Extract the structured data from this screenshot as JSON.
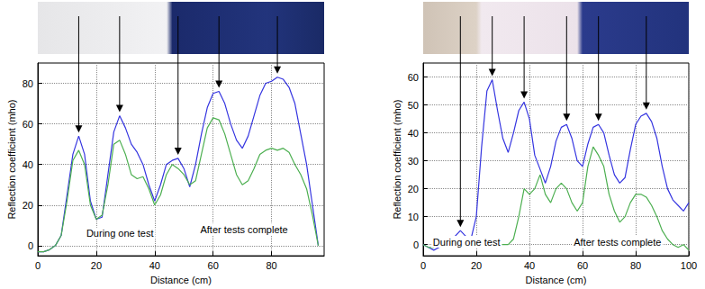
{
  "chart_data": [
    {
      "type": "line",
      "xlabel": "Distance (cm)",
      "ylabel": "Reflection coefficient (mho)",
      "x": [
        0,
        2,
        4,
        6,
        8,
        10,
        12,
        14,
        16,
        18,
        20,
        22,
        24,
        26,
        28,
        30,
        32,
        34,
        36,
        38,
        40,
        42,
        44,
        46,
        48,
        50,
        52,
        54,
        56,
        58,
        60,
        62,
        64,
        66,
        68,
        70,
        72,
        74,
        76,
        78,
        80,
        82,
        84,
        86,
        88,
        90,
        92,
        94,
        96
      ],
      "series": [
        {
          "color": "#3535e0",
          "values": [
            -3,
            -3,
            -2,
            0,
            5,
            25,
            45,
            54,
            45,
            22,
            13,
            14,
            35,
            56,
            64,
            58,
            50,
            46,
            40,
            30,
            22,
            30,
            40,
            42,
            43,
            38,
            29,
            40,
            55,
            68,
            75,
            76,
            70,
            60,
            52,
            48,
            54,
            64,
            74,
            80,
            81,
            83,
            82,
            78,
            70,
            55,
            40,
            20,
            0
          ]
        },
        {
          "color": "#4caf50",
          "values": [
            -3,
            -3,
            -2,
            0,
            5,
            22,
            42,
            47,
            40,
            20,
            13,
            15,
            30,
            50,
            52,
            45,
            35,
            33,
            34,
            28,
            20,
            25,
            35,
            40,
            38,
            35,
            30,
            32,
            45,
            58,
            63,
            62,
            55,
            45,
            35,
            30,
            32,
            38,
            45,
            47,
            48,
            47,
            48,
            46,
            40,
            35,
            28,
            15,
            0
          ]
        }
      ],
      "xlim": [
        0,
        98
      ],
      "xticks": [
        0,
        20,
        40,
        60,
        80
      ],
      "ylim": [
        -5,
        90
      ],
      "yticks": [
        0,
        20,
        40,
        60,
        80
      ],
      "grid": true,
      "annotations": [
        "During one test",
        "After tests complete"
      ]
    },
    {
      "type": "line",
      "xlabel": "Distance (cm)",
      "ylabel": "Reflection coefficient (mho)",
      "x": [
        0,
        2,
        4,
        6,
        8,
        10,
        12,
        14,
        16,
        18,
        20,
        22,
        24,
        26,
        28,
        30,
        32,
        34,
        36,
        38,
        40,
        42,
        44,
        46,
        48,
        50,
        52,
        54,
        56,
        58,
        60,
        62,
        64,
        66,
        68,
        70,
        72,
        74,
        76,
        78,
        80,
        82,
        84,
        86,
        88,
        90,
        92,
        94,
        96,
        98,
        100
      ],
      "series": [
        {
          "color": "#3535e0",
          "values": [
            0,
            -1,
            -2,
            -1,
            0,
            1,
            3,
            5,
            3,
            2,
            10,
            35,
            55,
            59,
            48,
            38,
            33,
            40,
            48,
            51,
            45,
            32,
            27,
            22,
            28,
            37,
            42,
            43,
            38,
            30,
            28,
            36,
            42,
            43,
            40,
            32,
            25,
            22,
            24,
            34,
            43,
            46,
            47,
            44,
            38,
            28,
            20,
            16,
            14,
            12,
            15
          ]
        },
        {
          "color": "#4caf50",
          "values": [
            0,
            -1,
            -1,
            0,
            0,
            0,
            0,
            0,
            0,
            0,
            0,
            0,
            0,
            0,
            0,
            0,
            0,
            2,
            10,
            20,
            18,
            20,
            25,
            18,
            15,
            20,
            22,
            20,
            15,
            12,
            15,
            28,
            35,
            32,
            28,
            18,
            12,
            8,
            10,
            15,
            18,
            18,
            17,
            14,
            10,
            5,
            2,
            0,
            -1,
            0,
            -2
          ]
        }
      ],
      "xlim": [
        0,
        100
      ],
      "xticks": [
        0,
        20,
        40,
        60,
        80,
        100
      ],
      "ylim": [
        -4,
        65
      ],
      "yticks": [
        0,
        10,
        20,
        30,
        40,
        50,
        60
      ],
      "grid": true,
      "annotations": [
        "During one test",
        "After tests complete"
      ]
    }
  ]
}
